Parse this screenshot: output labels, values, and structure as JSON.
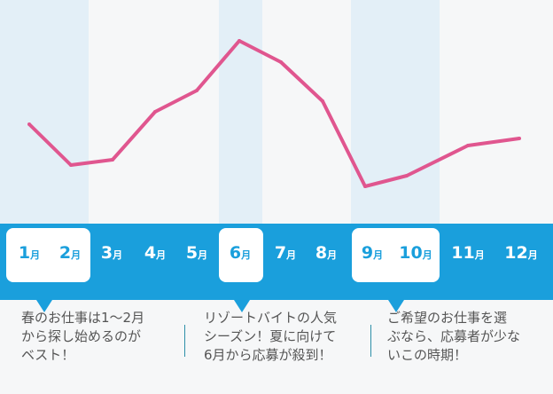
{
  "chart_data": {
    "type": "line",
    "title": "",
    "categories": [
      "1",
      "2",
      "3",
      "4",
      "5",
      "6",
      "7",
      "8",
      "9",
      "10",
      "11",
      "12"
    ],
    "month_suffix": "月",
    "values": [
      55,
      32,
      35,
      62,
      74,
      102,
      90,
      68,
      20,
      26,
      43,
      47
    ],
    "ylim": [
      0,
      125
    ],
    "highlight_groups": [
      [
        1,
        2
      ],
      [
        6
      ],
      [
        9,
        10
      ]
    ],
    "line_color": "#e0568f",
    "band_color": "#e3eff7",
    "bar_color": "#1a9fdc"
  },
  "notes": [
    {
      "lines": [
        "春のお仕事は1〜2月",
        "から探し始めるのが",
        "ベスト！"
      ]
    },
    {
      "lines": [
        "リゾートバイトの人気",
        "シーズン！夏に向けて",
        "6月から応募が殺到！"
      ]
    },
    {
      "lines": [
        "ご希望のお仕事を選",
        "ぶなら、応募者が少な",
        "いこの時期！"
      ]
    }
  ]
}
